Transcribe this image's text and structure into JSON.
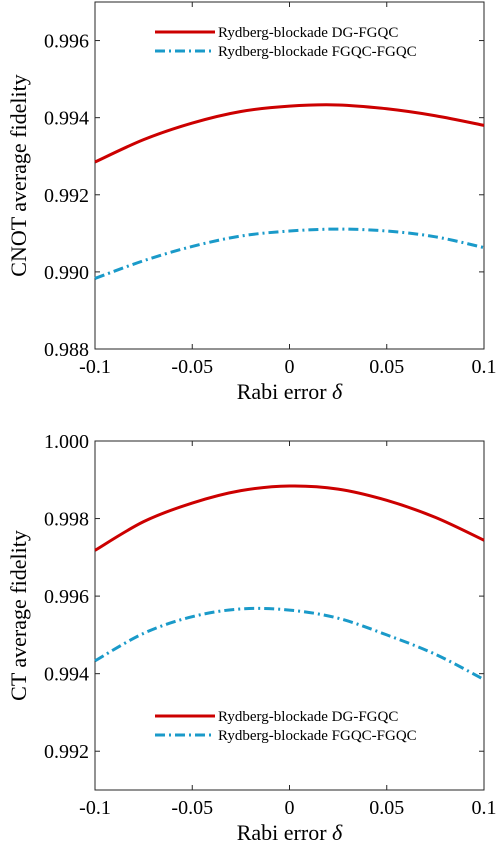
{
  "chart_data": [
    {
      "type": "line",
      "xlabel": "Rabi error",
      "xlabel_symbol": "δ",
      "ylabel": "CNOT average fidelity",
      "xlim": [
        -0.1,
        0.1
      ],
      "ylim": [
        0.988,
        0.997
      ],
      "x_ticks": [
        -0.1,
        -0.05,
        0,
        0.05,
        0.1
      ],
      "x_tick_labels": [
        "-0.1",
        "-0.05",
        "0",
        "0.05",
        "0.1"
      ],
      "y_ticks": [
        0.988,
        0.99,
        0.992,
        0.994,
        0.996
      ],
      "y_tick_labels": [
        "0.988",
        "0.990",
        "0.992",
        "0.994",
        "0.996"
      ],
      "grid": false,
      "legend_position": "top-right",
      "x": [
        -0.1,
        -0.075,
        -0.05,
        -0.025,
        0,
        0.025,
        0.05,
        0.075,
        0.1
      ],
      "series": [
        {
          "name": "Rydberg-blockade DG-FGQC",
          "color": "#cc0000",
          "style": "solid",
          "values": [
            0.99285,
            0.99343,
            0.99386,
            0.99416,
            0.9943,
            0.99433,
            0.99423,
            0.99405,
            0.9938
          ]
        },
        {
          "name": "Rydberg-blockade FGQC-FGQC",
          "color": "#1a9ac9",
          "style": "dashdot",
          "values": [
            0.98983,
            0.99029,
            0.99066,
            0.99093,
            0.99106,
            0.99111,
            0.99106,
            0.99091,
            0.99063
          ]
        }
      ]
    },
    {
      "type": "line",
      "xlabel": "Rabi error",
      "xlabel_symbol": "δ",
      "ylabel": "CT average fidelity",
      "xlim": [
        -0.1,
        0.1
      ],
      "ylim": [
        0.991,
        1.0
      ],
      "x_ticks": [
        -0.1,
        -0.05,
        0,
        0.05,
        0.1
      ],
      "x_tick_labels": [
        "-0.1",
        "-0.05",
        "0",
        "0.05",
        "0.1"
      ],
      "y_ticks": [
        0.992,
        0.994,
        0.996,
        0.998,
        1.0
      ],
      "y_tick_labels": [
        "0.992",
        "0.994",
        "0.996",
        "0.998",
        "1.000"
      ],
      "grid": false,
      "legend_position": "bottom-right",
      "x": [
        -0.1,
        -0.075,
        -0.05,
        -0.025,
        0,
        0.025,
        0.05,
        0.075,
        0.1
      ],
      "series": [
        {
          "name": "Rydberg-blockade DG-FGQC",
          "color": "#cc0000",
          "style": "solid",
          "values": [
            0.99718,
            0.99792,
            0.9984,
            0.99872,
            0.99884,
            0.99876,
            0.99847,
            0.99803,
            0.99744
          ]
        },
        {
          "name": "Rydberg-blockade FGQC-FGQC",
          "color": "#1a9ac9",
          "style": "dashdot",
          "values": [
            0.99433,
            0.99504,
            0.99547,
            0.99567,
            0.99564,
            0.99543,
            0.995,
            0.9945,
            0.99385
          ]
        }
      ]
    }
  ]
}
